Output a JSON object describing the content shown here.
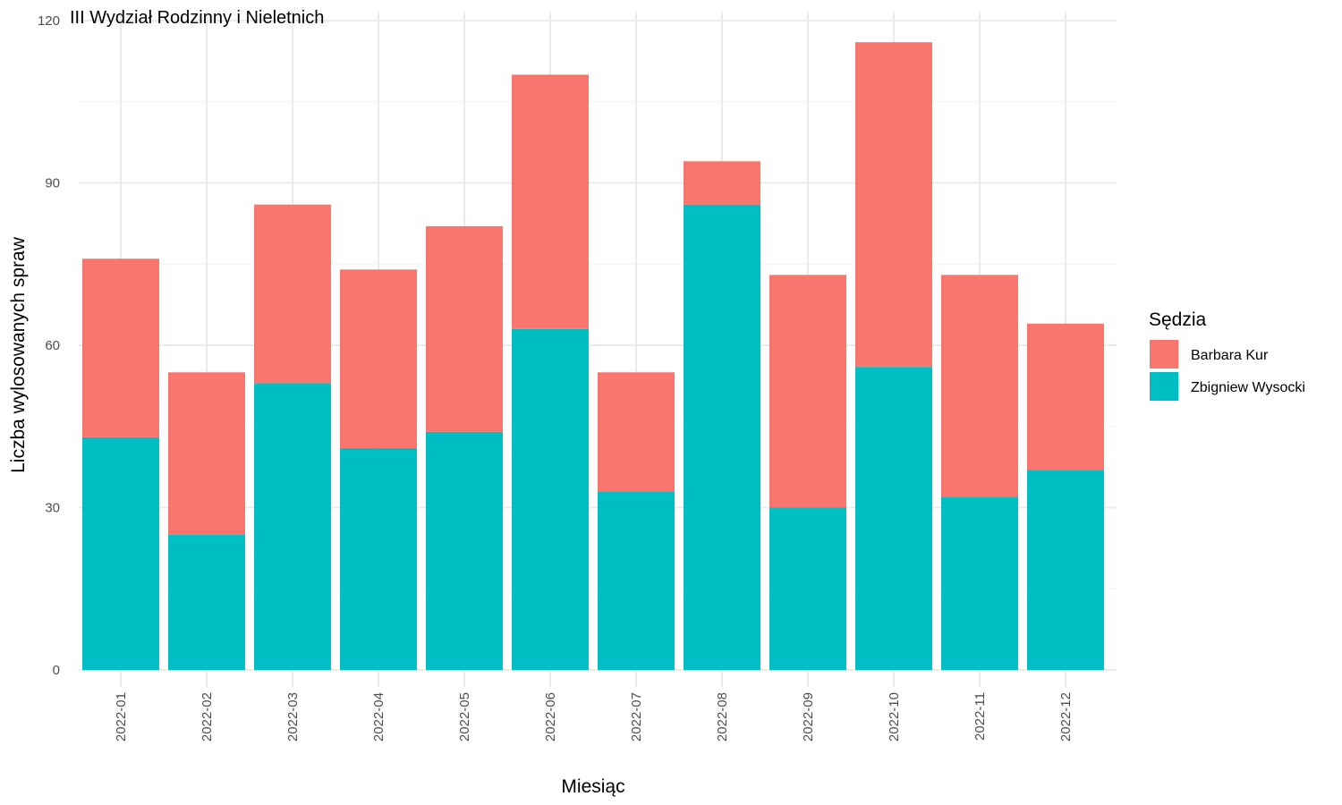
{
  "chart_data": {
    "type": "bar",
    "stacked": true,
    "title": "III Wydział Rodzinny i Nieletnich",
    "xlabel": "Miesiąc",
    "ylabel": "Liczba wylosowanych spraw",
    "ylim": [
      0,
      120
    ],
    "yticks": [
      0,
      30,
      60,
      90,
      120
    ],
    "grid": true,
    "legend_title": "Sędzia",
    "legend_position": "right",
    "categories": [
      "2022-01",
      "2022-02",
      "2022-03",
      "2022-04",
      "2022-05",
      "2022-06",
      "2022-07",
      "2022-08",
      "2022-09",
      "2022-10",
      "2022-11",
      "2022-12"
    ],
    "series": [
      {
        "name": "Zbigniew Wysocki",
        "color": "#00BFC4",
        "values": [
          43,
          25,
          53,
          41,
          44,
          63,
          33,
          86,
          30,
          56,
          32,
          37
        ]
      },
      {
        "name": "Barbara Kur",
        "color": "#F8766D",
        "values": [
          33,
          30,
          33,
          33,
          38,
          47,
          22,
          8,
          43,
          60,
          41,
          27
        ]
      }
    ],
    "legend_order": [
      "Barbara Kur",
      "Zbigniew Wysocki"
    ]
  }
}
